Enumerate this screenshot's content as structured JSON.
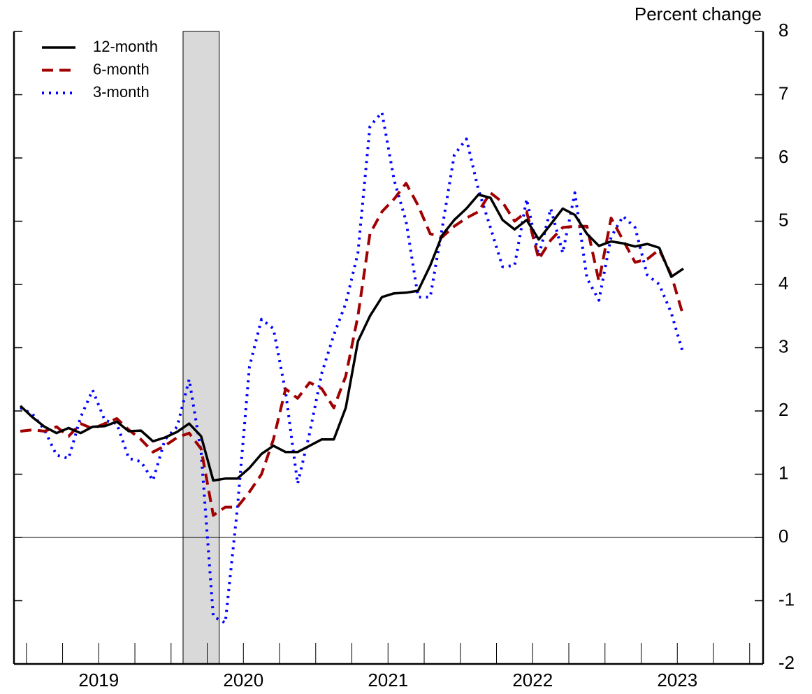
{
  "chart_data": {
    "type": "line",
    "y_axis_label": "Percent change",
    "x": [
      2018.958,
      2019.042,
      2019.125,
      2019.208,
      2019.292,
      2019.375,
      2019.458,
      2019.542,
      2019.625,
      2019.708,
      2019.792,
      2019.875,
      2019.958,
      2020.042,
      2020.125,
      2020.208,
      2020.292,
      2020.375,
      2020.458,
      2020.542,
      2020.625,
      2020.708,
      2020.792,
      2020.875,
      2020.958,
      2021.042,
      2021.125,
      2021.208,
      2021.292,
      2021.375,
      2021.458,
      2021.542,
      2021.625,
      2021.708,
      2021.792,
      2021.875,
      2021.958,
      2022.042,
      2022.125,
      2022.208,
      2022.292,
      2022.375,
      2022.458,
      2022.542,
      2022.625,
      2022.708,
      2022.792,
      2022.875,
      2022.958,
      2023.042,
      2023.125,
      2023.208,
      2023.292,
      2023.375,
      2023.458,
      2023.542
    ],
    "series": [
      {
        "name": "12-month",
        "color": "#000000",
        "linestyle": "solid",
        "values": [
          2.08,
          1.9,
          1.75,
          1.65,
          1.73,
          1.65,
          1.75,
          1.76,
          1.83,
          1.68,
          1.69,
          1.52,
          1.58,
          1.67,
          1.8,
          1.6,
          0.9,
          0.93,
          0.93,
          1.1,
          1.32,
          1.45,
          1.35,
          1.35,
          1.45,
          1.55,
          1.55,
          2.05,
          3.1,
          3.5,
          3.8,
          3.86,
          3.87,
          3.9,
          4.3,
          4.78,
          5.02,
          5.2,
          5.42,
          5.37,
          5.02,
          4.87,
          5.02,
          4.71,
          4.95,
          5.2,
          5.1,
          4.8,
          4.61,
          4.68,
          4.65,
          4.6,
          4.64,
          4.58,
          4.12,
          4.25
        ]
      },
      {
        "name": "6-month",
        "color": "#a00000",
        "linestyle": "dashed",
        "values": [
          1.68,
          1.7,
          1.68,
          1.75,
          1.6,
          1.8,
          1.72,
          1.8,
          1.88,
          1.7,
          1.55,
          1.35,
          1.45,
          1.58,
          1.65,
          1.4,
          0.35,
          0.48,
          0.48,
          0.72,
          1.0,
          1.55,
          2.35,
          2.2,
          2.45,
          2.35,
          2.05,
          2.55,
          3.5,
          4.8,
          5.15,
          5.35,
          5.6,
          5.25,
          4.8,
          4.75,
          4.92,
          5.05,
          5.15,
          5.45,
          5.3,
          5.0,
          5.15,
          4.4,
          4.7,
          4.9,
          4.92,
          4.92,
          4.05,
          5.05,
          4.7,
          4.35,
          4.4,
          4.55,
          4.15,
          3.5
        ]
      },
      {
        "name": "3-month",
        "color": "#0000ff",
        "linestyle": "dotted",
        "values": [
          2.05,
          1.95,
          1.7,
          1.3,
          1.25,
          1.9,
          2.33,
          1.85,
          1.8,
          1.25,
          1.2,
          0.9,
          1.55,
          1.75,
          2.5,
          1.35,
          -1.25,
          -1.35,
          0.45,
          2.7,
          3.45,
          3.3,
          2.3,
          0.85,
          1.65,
          2.6,
          3.2,
          3.7,
          4.5,
          6.5,
          6.72,
          5.65,
          5.0,
          3.8,
          3.8,
          4.9,
          6.05,
          6.3,
          5.5,
          4.9,
          4.28,
          4.3,
          5.35,
          4.45,
          5.2,
          4.5,
          5.45,
          4.1,
          3.75,
          4.75,
          5.08,
          4.9,
          4.15,
          4.0,
          3.55,
          2.9
        ]
      }
    ],
    "shaded_x": [
      2020.083,
      2020.333
    ],
    "xlim": [
      2018.914,
      2024.093
    ],
    "xticks": [
      {
        "value": 2019.5,
        "label": "2019"
      },
      {
        "value": 2020.5,
        "label": "2020"
      },
      {
        "value": 2021.5,
        "label": "2021"
      },
      {
        "value": 2022.5,
        "label": "2022"
      },
      {
        "value": 2023.5,
        "label": "2023"
      }
    ],
    "xminorticks": [
      2019,
      2019.25,
      2019.5,
      2019.75,
      2020,
      2020.25,
      2020.5,
      2020.75,
      2021,
      2021.25,
      2021.5,
      2021.75,
      2022,
      2022.25,
      2022.5,
      2022.75,
      2023,
      2023.25,
      2023.5,
      2023.75,
      2024
    ],
    "ylim": [
      -2,
      8
    ],
    "yticks": [
      -2,
      -1,
      0,
      1,
      2,
      3,
      4,
      5,
      6,
      7,
      8
    ],
    "zero_line": true,
    "legend_position": "upper-left"
  }
}
